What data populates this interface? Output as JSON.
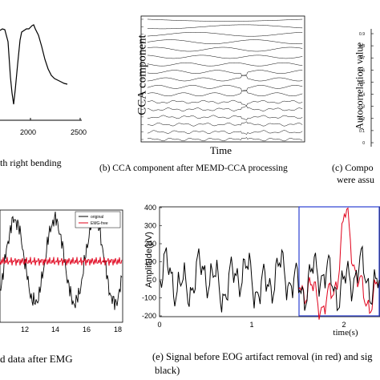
{
  "panel_a": {
    "caption": "th right bending",
    "x_ticks": [
      "2000",
      "2500"
    ]
  },
  "panel_b": {
    "caption": "(b) CCA component after MEMD-CCA processing",
    "ylabel": "CCA component",
    "xlabel": "Time"
  },
  "panel_c": {
    "caption_line1": "(c) Compo",
    "caption_line2": "were assu",
    "ylabel": "Autocorrelation value",
    "y_ticks": [
      "0.9",
      "0.8",
      "0.7",
      "0.6",
      "0.5",
      "0.4",
      "0.3",
      "0.2",
      "0.1",
      "0"
    ]
  },
  "panel_d": {
    "caption": "d data after EMG",
    "legend": [
      "original",
      "EMG-free"
    ],
    "x_ticks": [
      "12",
      "14",
      "16",
      "18"
    ],
    "colors": {
      "original": "#000000",
      "emg_free": "#e0001a"
    }
  },
  "panel_e": {
    "caption_line1": "(e) Signal  before EOG artifact removal (in red) and sig",
    "caption_line2": "black)",
    "ylabel": "Amplitude(µV)",
    "xlabel": "time(s)",
    "y_ticks": [
      "400",
      "300",
      "200",
      "100",
      "0",
      "-100",
      "-200"
    ],
    "x_ticks": [
      "0",
      "1",
      "2"
    ],
    "colors": {
      "before": "#e0001a",
      "after": "#000000",
      "highlight_box": "#2b3fd1"
    }
  }
}
